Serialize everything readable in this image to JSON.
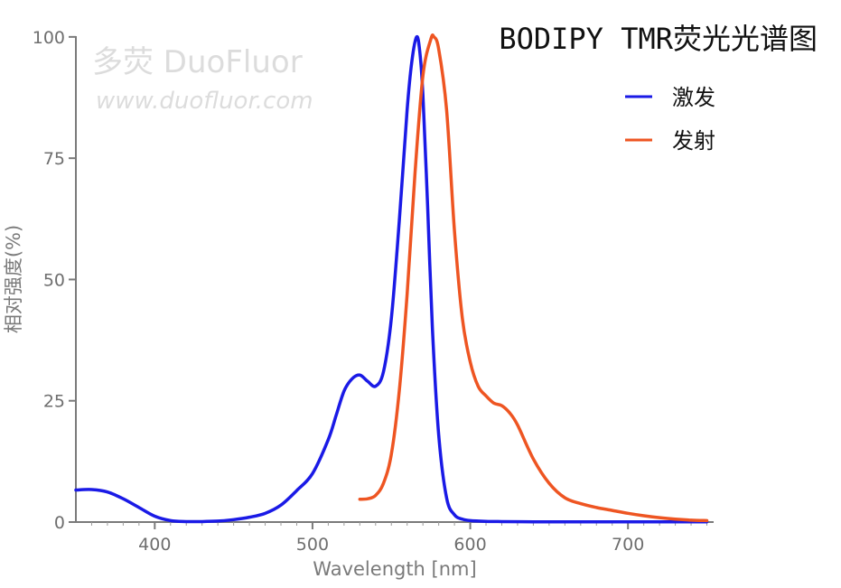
{
  "chart_data": {
    "type": "line",
    "title": "BODIPY TMR荧光光谱图",
    "xlabel": "Wavelength [nm]",
    "ylabel": "相对强度(%)",
    "xlim": [
      350,
      752
    ],
    "ylim": [
      0,
      105
    ],
    "x_ticks": [
      "400",
      "500",
      "600",
      "700"
    ],
    "y_ticks": [
      "0",
      "25",
      "50",
      "75",
      "100"
    ],
    "grid": false,
    "legend_position": "top-right",
    "series": [
      {
        "name": "激发",
        "color": "#1a1ae6",
        "x": [
          350,
          360,
          370,
          380,
          390,
          400,
          410,
          420,
          430,
          440,
          450,
          460,
          470,
          480,
          490,
          500,
          510,
          515,
          520,
          525,
          530,
          535,
          540,
          545,
          550,
          555,
          560,
          563,
          566,
          568,
          570,
          573,
          576,
          580,
          585,
          590,
          595,
          600,
          610,
          620,
          640,
          660,
          680,
          700,
          720,
          750
        ],
        "y": [
          6.6,
          6.7,
          6.2,
          4.8,
          3.0,
          1.2,
          0.3,
          0.1,
          0.1,
          0.2,
          0.5,
          1.0,
          1.8,
          3.5,
          6.5,
          10.0,
          17.0,
          22.0,
          27.0,
          29.5,
          30.3,
          29.0,
          28.0,
          31.0,
          42.0,
          62.0,
          85.0,
          95.0,
          100.0,
          97.0,
          88.0,
          65.0,
          40.0,
          18.0,
          5.0,
          1.5,
          0.6,
          0.3,
          0.15,
          0.1,
          0.05,
          0.05,
          0.05,
          0.05,
          0.05,
          0.05
        ]
      },
      {
        "name": "发射",
        "color": "#ee5522",
        "x": [
          530,
          535,
          540,
          545,
          550,
          555,
          560,
          565,
          570,
          575,
          577,
          580,
          585,
          590,
          595,
          600,
          605,
          610,
          615,
          620,
          625,
          630,
          640,
          650,
          660,
          670,
          680,
          690,
          700,
          710,
          720,
          730,
          740,
          750
        ],
        "y": [
          4.7,
          4.8,
          5.5,
          8.0,
          14.0,
          27.0,
          47.0,
          72.0,
          92.0,
          99.5,
          100.0,
          97.5,
          85.0,
          60.0,
          42.0,
          33.0,
          28.0,
          26.0,
          24.5,
          24.0,
          22.5,
          20.0,
          13.0,
          8.0,
          5.0,
          3.8,
          3.0,
          2.4,
          1.8,
          1.3,
          0.9,
          0.6,
          0.4,
          0.3
        ]
      }
    ]
  },
  "watermark": {
    "logo_text": "多荧 DuoFluor",
    "url_text": "www.duofluor.com"
  }
}
